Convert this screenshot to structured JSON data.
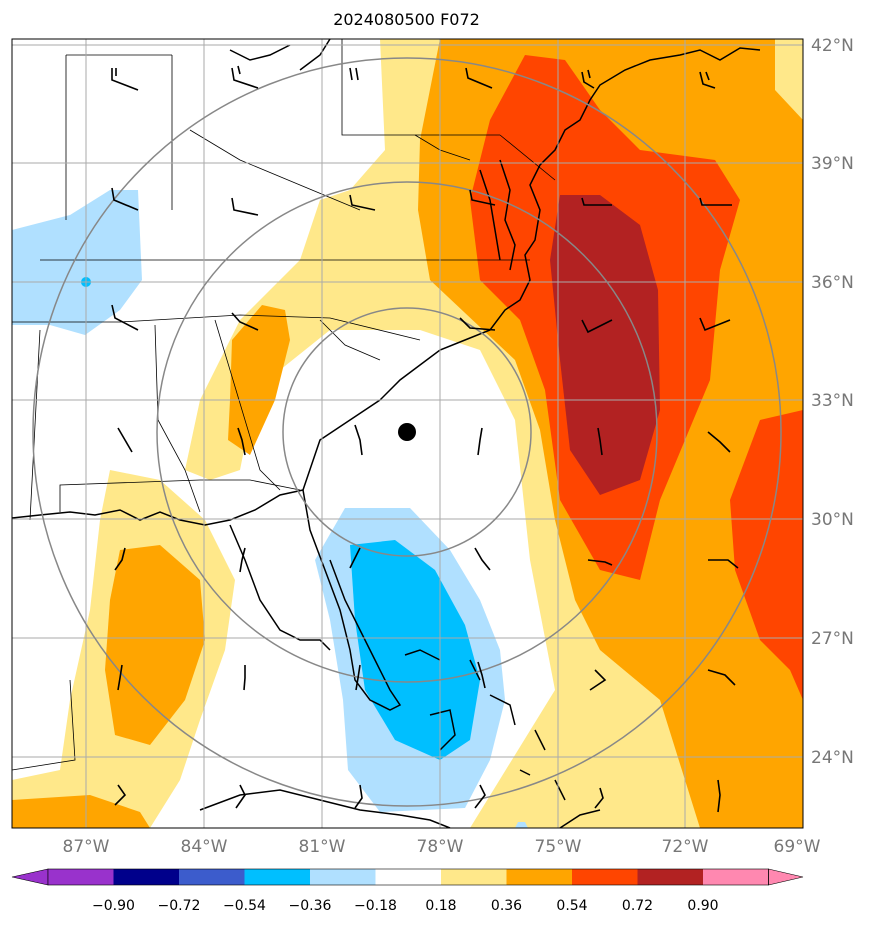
{
  "title": "2024080500 F072",
  "map": {
    "lon_range": [
      -89,
      -69
    ],
    "lat_range": [
      22.5,
      42.5
    ],
    "lon_ticks": [
      {
        "value": -87,
        "label": "87°W"
      },
      {
        "value": -84,
        "label": "84°W"
      },
      {
        "value": -81,
        "label": "81°W"
      },
      {
        "value": -78,
        "label": "78°W"
      },
      {
        "value": -75,
        "label": "75°W"
      },
      {
        "value": -72,
        "label": "72°W"
      },
      {
        "value": -69,
        "label": "69°W"
      }
    ],
    "lat_ticks": [
      {
        "value": 42,
        "label": "42°N"
      },
      {
        "value": 39,
        "label": "39°N"
      },
      {
        "value": 36,
        "label": "36°N"
      },
      {
        "value": 33,
        "label": "33°N"
      },
      {
        "value": 30,
        "label": "30°N"
      },
      {
        "value": 27,
        "label": "27°N"
      },
      {
        "value": 24,
        "label": "24°N"
      }
    ],
    "grid": true,
    "center_marker": {
      "lon": -78.0,
      "lat": 32.2
    },
    "ring_radii_deg": [
      3,
      6,
      9
    ]
  },
  "colorbar": {
    "tick_labels": [
      "−0.90",
      "−0.72",
      "−0.54",
      "−0.36",
      "−0.18",
      "0.18",
      "0.36",
      "0.54",
      "0.72",
      "0.90"
    ],
    "colors": [
      "#9932cc",
      "#00008b",
      "#3c5ccc",
      "#00bfff",
      "#b0e0ff",
      "#ffffff",
      "#ffe88a",
      "#ffa500",
      "#ff4500",
      "#b22222",
      "#ff88b0"
    ],
    "extend": "both"
  },
  "colors": {
    "light_blue": "#b0e0ff",
    "deep_sky_blue": "#00bfff",
    "light_yellow": "#ffe88a",
    "orange": "#ffa500",
    "orange_red": "#ff4500",
    "firebrick": "#b22222"
  }
}
